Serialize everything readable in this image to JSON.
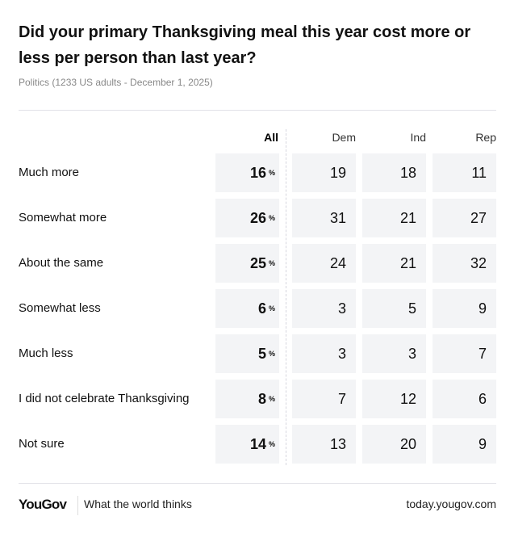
{
  "title": "Did your primary Thanksgiving meal this year cost more or less per person than last year?",
  "subtitle": "Politics (1233 US adults - December 1, 2025)",
  "columns": {
    "all": "All",
    "dem": "Dem",
    "ind": "Ind",
    "rep": "Rep"
  },
  "pct_symbol": "%",
  "rows": [
    {
      "label": "Much more",
      "all": "16",
      "dem": "19",
      "ind": "18",
      "rep": "11"
    },
    {
      "label": "Somewhat more",
      "all": "26",
      "dem": "31",
      "ind": "21",
      "rep": "27"
    },
    {
      "label": "About the same",
      "all": "25",
      "dem": "24",
      "ind": "21",
      "rep": "32"
    },
    {
      "label": "Somewhat less",
      "all": "6",
      "dem": "3",
      "ind": "5",
      "rep": "9"
    },
    {
      "label": "Much less",
      "all": "5",
      "dem": "3",
      "ind": "3",
      "rep": "7"
    },
    {
      "label": "I did not celebrate Thanksgiving",
      "all": "8",
      "dem": "7",
      "ind": "12",
      "rep": "6"
    },
    {
      "label": "Not sure",
      "all": "14",
      "dem": "13",
      "ind": "20",
      "rep": "9"
    }
  ],
  "footer": {
    "logo": "YouGov",
    "tagline": "What the world thinks",
    "url": "today.yougov.com"
  },
  "colors": {
    "cell_bg": "#f3f4f6",
    "text": "#111111",
    "subtitle": "#888888"
  }
}
